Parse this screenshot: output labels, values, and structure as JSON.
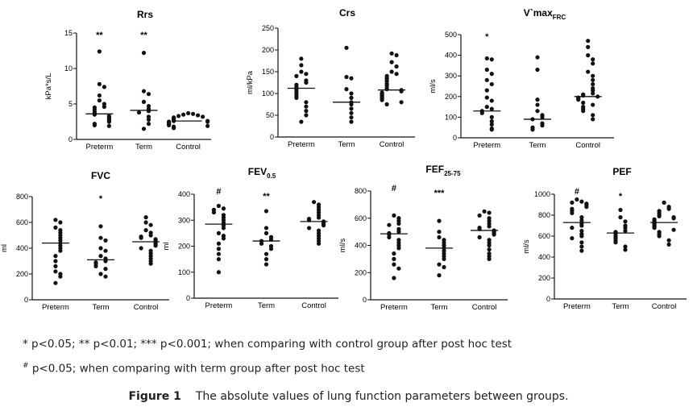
{
  "footnotes": {
    "line1": "* p<0.05; ** p<0.01; *** p<0.001; when comparing with control group after post hoc test",
    "line2_mark": "#",
    "line2": " p<0.05; when comparing with term group after post hoc test"
  },
  "figure_caption": {
    "label": "Figure 1",
    "text": "The absolute values of lung function parameters between groups."
  },
  "colors": {
    "points": "#111111",
    "axes": "#111111"
  },
  "chart_data": [
    {
      "type": "scatter",
      "title": "Rrs",
      "title_sub": "",
      "ylabel": "kPa*s/L",
      "ylim": [
        0,
        15
      ],
      "yticks": [
        0,
        5,
        10,
        15
      ],
      "categories": [
        "Preterm",
        "Term",
        "Control"
      ],
      "annotations": [
        "**",
        "**",
        ""
      ],
      "medians": [
        3.6,
        4.1,
        2.6
      ],
      "series": [
        {
          "values": [
            12.4,
            7.8,
            7.4,
            6.2,
            5.5,
            5.0,
            4.6,
            4.5,
            4.2,
            3.9,
            3.7,
            3.5,
            3.3,
            3.1,
            2.9,
            2.7,
            2.5,
            2.2,
            2.0,
            1.9
          ]
        },
        {
          "values": [
            12.2,
            6.8,
            6.4,
            5.3,
            4.7,
            4.3,
            4.0,
            3.8,
            3.2,
            2.8,
            2.2,
            1.5
          ]
        },
        {
          "values": [
            3.7,
            3.6,
            3.5,
            3.4,
            3.3,
            3.2,
            3.1,
            3.0,
            2.9,
            2.8,
            2.7,
            2.6,
            2.6,
            2.5,
            2.5,
            2.4,
            2.3,
            2.2,
            2.1,
            2.0,
            1.9,
            1.8,
            1.7,
            1.6
          ]
        }
      ]
    },
    {
      "type": "scatter",
      "title": "Crs",
      "title_sub": "",
      "ylabel": "ml/kPa",
      "ylim": [
        0,
        250
      ],
      "yticks": [
        0,
        50,
        100,
        150,
        200,
        250
      ],
      "categories": [
        "Preterm",
        "Term",
        "Control"
      ],
      "annotations": [
        "",
        "",
        ""
      ],
      "medians": [
        112,
        80,
        108
      ],
      "series": [
        {
          "values": [
            180,
            165,
            150,
            145,
            140,
            130,
            125,
            120,
            115,
            110,
            105,
            100,
            95,
            90,
            80,
            70,
            60,
            50,
            35
          ]
        },
        {
          "values": [
            205,
            138,
            135,
            110,
            100,
            90,
            80,
            75,
            65,
            55,
            45,
            35
          ]
        },
        {
          "values": [
            192,
            188,
            172,
            162,
            150,
            145,
            140,
            135,
            130,
            128,
            122,
            118,
            112,
            110,
            108,
            105,
            102,
            100,
            98,
            95,
            92,
            90,
            88,
            85,
            80,
            75
          ]
        }
      ]
    },
    {
      "type": "scatter",
      "title": "V`max",
      "title_sub": "FRC",
      "ylabel": "ml/s",
      "ylim": [
        0,
        500
      ],
      "yticks": [
        0,
        100,
        200,
        300,
        400,
        500
      ],
      "categories": [
        "Preterm",
        "Term",
        "Control"
      ],
      "annotations": [
        "*",
        "",
        ""
      ],
      "medians": [
        130,
        90,
        200
      ],
      "series": [
        {
          "values": [
            385,
            380,
            330,
            310,
            280,
            260,
            230,
            195,
            180,
            150,
            140,
            130,
            120,
            100,
            80,
            65,
            45,
            40
          ]
        },
        {
          "values": [
            390,
            330,
            185,
            160,
            130,
            110,
            100,
            90,
            70,
            60,
            50,
            40
          ]
        },
        {
          "values": [
            470,
            440,
            400,
            380,
            360,
            320,
            300,
            280,
            260,
            240,
            230,
            215,
            210,
            205,
            200,
            195,
            190,
            185,
            170,
            160,
            150,
            140,
            130,
            110,
            90
          ]
        }
      ]
    },
    {
      "type": "scatter",
      "title": "FVC",
      "title_sub": "",
      "ylabel": "ml",
      "ylim": [
        0,
        800
      ],
      "yticks": [
        0,
        200,
        400,
        600,
        800
      ],
      "categories": [
        "Preterm",
        "Term",
        "Control"
      ],
      "annotations": [
        "",
        "*",
        ""
      ],
      "medians": [
        440,
        310,
        450
      ],
      "series": [
        {
          "values": [
            620,
            600,
            560,
            540,
            520,
            500,
            480,
            460,
            440,
            420,
            400,
            380,
            340,
            300,
            260,
            220,
            200,
            180,
            130
          ]
        },
        {
          "values": [
            570,
            480,
            460,
            400,
            380,
            340,
            320,
            300,
            290,
            280,
            260,
            240,
            200,
            180
          ]
        },
        {
          "values": [
            640,
            600,
            580,
            540,
            520,
            500,
            490,
            480,
            470,
            460,
            450,
            440,
            430,
            420,
            400,
            380,
            360,
            340,
            320,
            300,
            280
          ]
        }
      ]
    },
    {
      "type": "scatter",
      "title": "FEV",
      "title_sub": "0.5",
      "ylabel": "ml",
      "ylim": [
        0,
        400
      ],
      "yticks": [
        0,
        100,
        200,
        300,
        400
      ],
      "categories": [
        "Preterm",
        "Term",
        "Control"
      ],
      "annotations": [
        "#",
        "**",
        ""
      ],
      "medians": [
        285,
        220,
        295
      ],
      "series": [
        {
          "values": [
            355,
            345,
            340,
            330,
            320,
            310,
            300,
            290,
            280,
            270,
            250,
            240,
            230,
            210,
            190,
            170,
            150,
            100
          ]
        },
        {
          "values": [
            335,
            270,
            250,
            235,
            225,
            220,
            210,
            200,
            190,
            170,
            150,
            130
          ]
        },
        {
          "values": [
            370,
            360,
            350,
            340,
            330,
            320,
            310,
            305,
            300,
            295,
            290,
            285,
            280,
            270,
            260,
            250,
            240,
            230,
            220,
            210
          ]
        }
      ]
    },
    {
      "type": "scatter",
      "title": "FEF",
      "title_sub": "25-75",
      "ylabel": "ml/s",
      "ylim": [
        0,
        800
      ],
      "yticks": [
        0,
        200,
        400,
        600,
        800
      ],
      "categories": [
        "Preterm",
        "Term",
        "Control"
      ],
      "annotations": [
        "#",
        "***",
        ""
      ],
      "medians": [
        485,
        380,
        510
      ],
      "series": [
        {
          "values": [
            620,
            600,
            580,
            560,
            550,
            520,
            500,
            490,
            480,
            460,
            440,
            420,
            400,
            380,
            340,
            300,
            260,
            230,
            160
          ]
        },
        {
          "values": [
            580,
            500,
            460,
            440,
            420,
            400,
            380,
            360,
            340,
            320,
            300,
            260,
            240,
            180
          ]
        },
        {
          "values": [
            650,
            640,
            620,
            600,
            580,
            560,
            540,
            530,
            520,
            510,
            500,
            490,
            480,
            460,
            440,
            420,
            400,
            370,
            340,
            320,
            300
          ]
        }
      ]
    },
    {
      "type": "scatter",
      "title": "PEF",
      "title_sub": "",
      "ylabel": "ml/s",
      "ylim": [
        0,
        1000
      ],
      "yticks": [
        0,
        200,
        400,
        600,
        800,
        1000
      ],
      "categories": [
        "Preterm",
        "Term",
        "Control"
      ],
      "annotations": [
        "#",
        "*",
        ""
      ],
      "medians": [
        730,
        630,
        730
      ],
      "series": [
        {
          "values": [
            950,
            930,
            920,
            910,
            900,
            880,
            860,
            840,
            820,
            780,
            750,
            720,
            700,
            680,
            650,
            620,
            600,
            580,
            540,
            500,
            460
          ]
        },
        {
          "values": [
            850,
            780,
            740,
            700,
            680,
            650,
            640,
            620,
            600,
            580,
            560,
            540,
            500,
            470
          ]
        },
        {
          "values": [
            920,
            880,
            860,
            840,
            820,
            800,
            790,
            780,
            770,
            760,
            750,
            740,
            730,
            720,
            710,
            700,
            690,
            680,
            660,
            640,
            620,
            600,
            560,
            520
          ]
        }
      ]
    }
  ]
}
